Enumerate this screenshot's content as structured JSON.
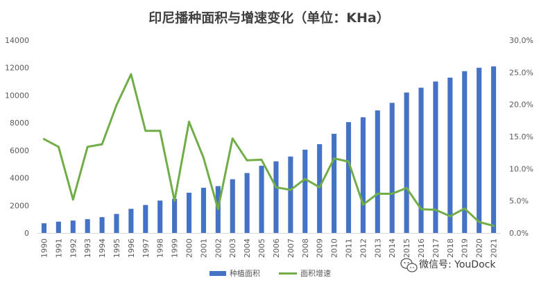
{
  "chart_data": {
    "type": "bar+line",
    "title": "印尼播种面积与增速变化（单位：KHa）",
    "categories": [
      "1990",
      "1991",
      "1992",
      "1993",
      "1994",
      "1995",
      "1996",
      "1997",
      "1998",
      "1999",
      "2000",
      "2001",
      "2002",
      "2003",
      "2004",
      "2005",
      "2006",
      "2007",
      "2008",
      "2009",
      "2010",
      "2011",
      "2012",
      "2013",
      "2014",
      "2015",
      "2016",
      "2017",
      "2018",
      "2019",
      "2020",
      "2021"
    ],
    "series": [
      {
        "name": "种植面积",
        "type": "bar",
        "axis": "left",
        "color": "#4472C4",
        "values": [
          700,
          820,
          900,
          1000,
          1150,
          1380,
          1750,
          2030,
          2350,
          2470,
          2920,
          3280,
          3400,
          3900,
          4350,
          4880,
          5200,
          5550,
          6050,
          6450,
          7200,
          8050,
          8400,
          8900,
          9450,
          10200,
          10550,
          11000,
          11280,
          11750,
          12000,
          12100
        ]
      },
      {
        "name": "面积增速",
        "type": "line",
        "axis": "right",
        "color": "#70AD47",
        "values": [
          14.6,
          13.4,
          5.2,
          13.4,
          13.8,
          19.9,
          24.7,
          15.9,
          15.9,
          5.0,
          17.3,
          11.7,
          3.7,
          14.7,
          11.3,
          11.4,
          7.1,
          6.7,
          8.4,
          7.1,
          11.6,
          11.1,
          4.4,
          6.1,
          6.1,
          7.0,
          3.7,
          3.6,
          2.6,
          3.8,
          1.7,
          1.1
        ]
      }
    ],
    "y_left": {
      "range": [
        0,
        14000
      ],
      "ticks": [
        "0",
        "2000",
        "4000",
        "6000",
        "8000",
        "10000",
        "12000",
        "14000"
      ]
    },
    "y_right": {
      "range": [
        0,
        30
      ],
      "ticks": [
        "0.0%",
        "5.0%",
        "10.0%",
        "15.0%",
        "20.0%",
        "25.0%",
        "30.0%"
      ]
    },
    "grid": false,
    "legend": {
      "position": "bottom",
      "entries": [
        "种植面积",
        "面积增速"
      ]
    }
  },
  "watermark": {
    "text": "微信号: YouDock",
    "icon": "wechat-icon"
  }
}
